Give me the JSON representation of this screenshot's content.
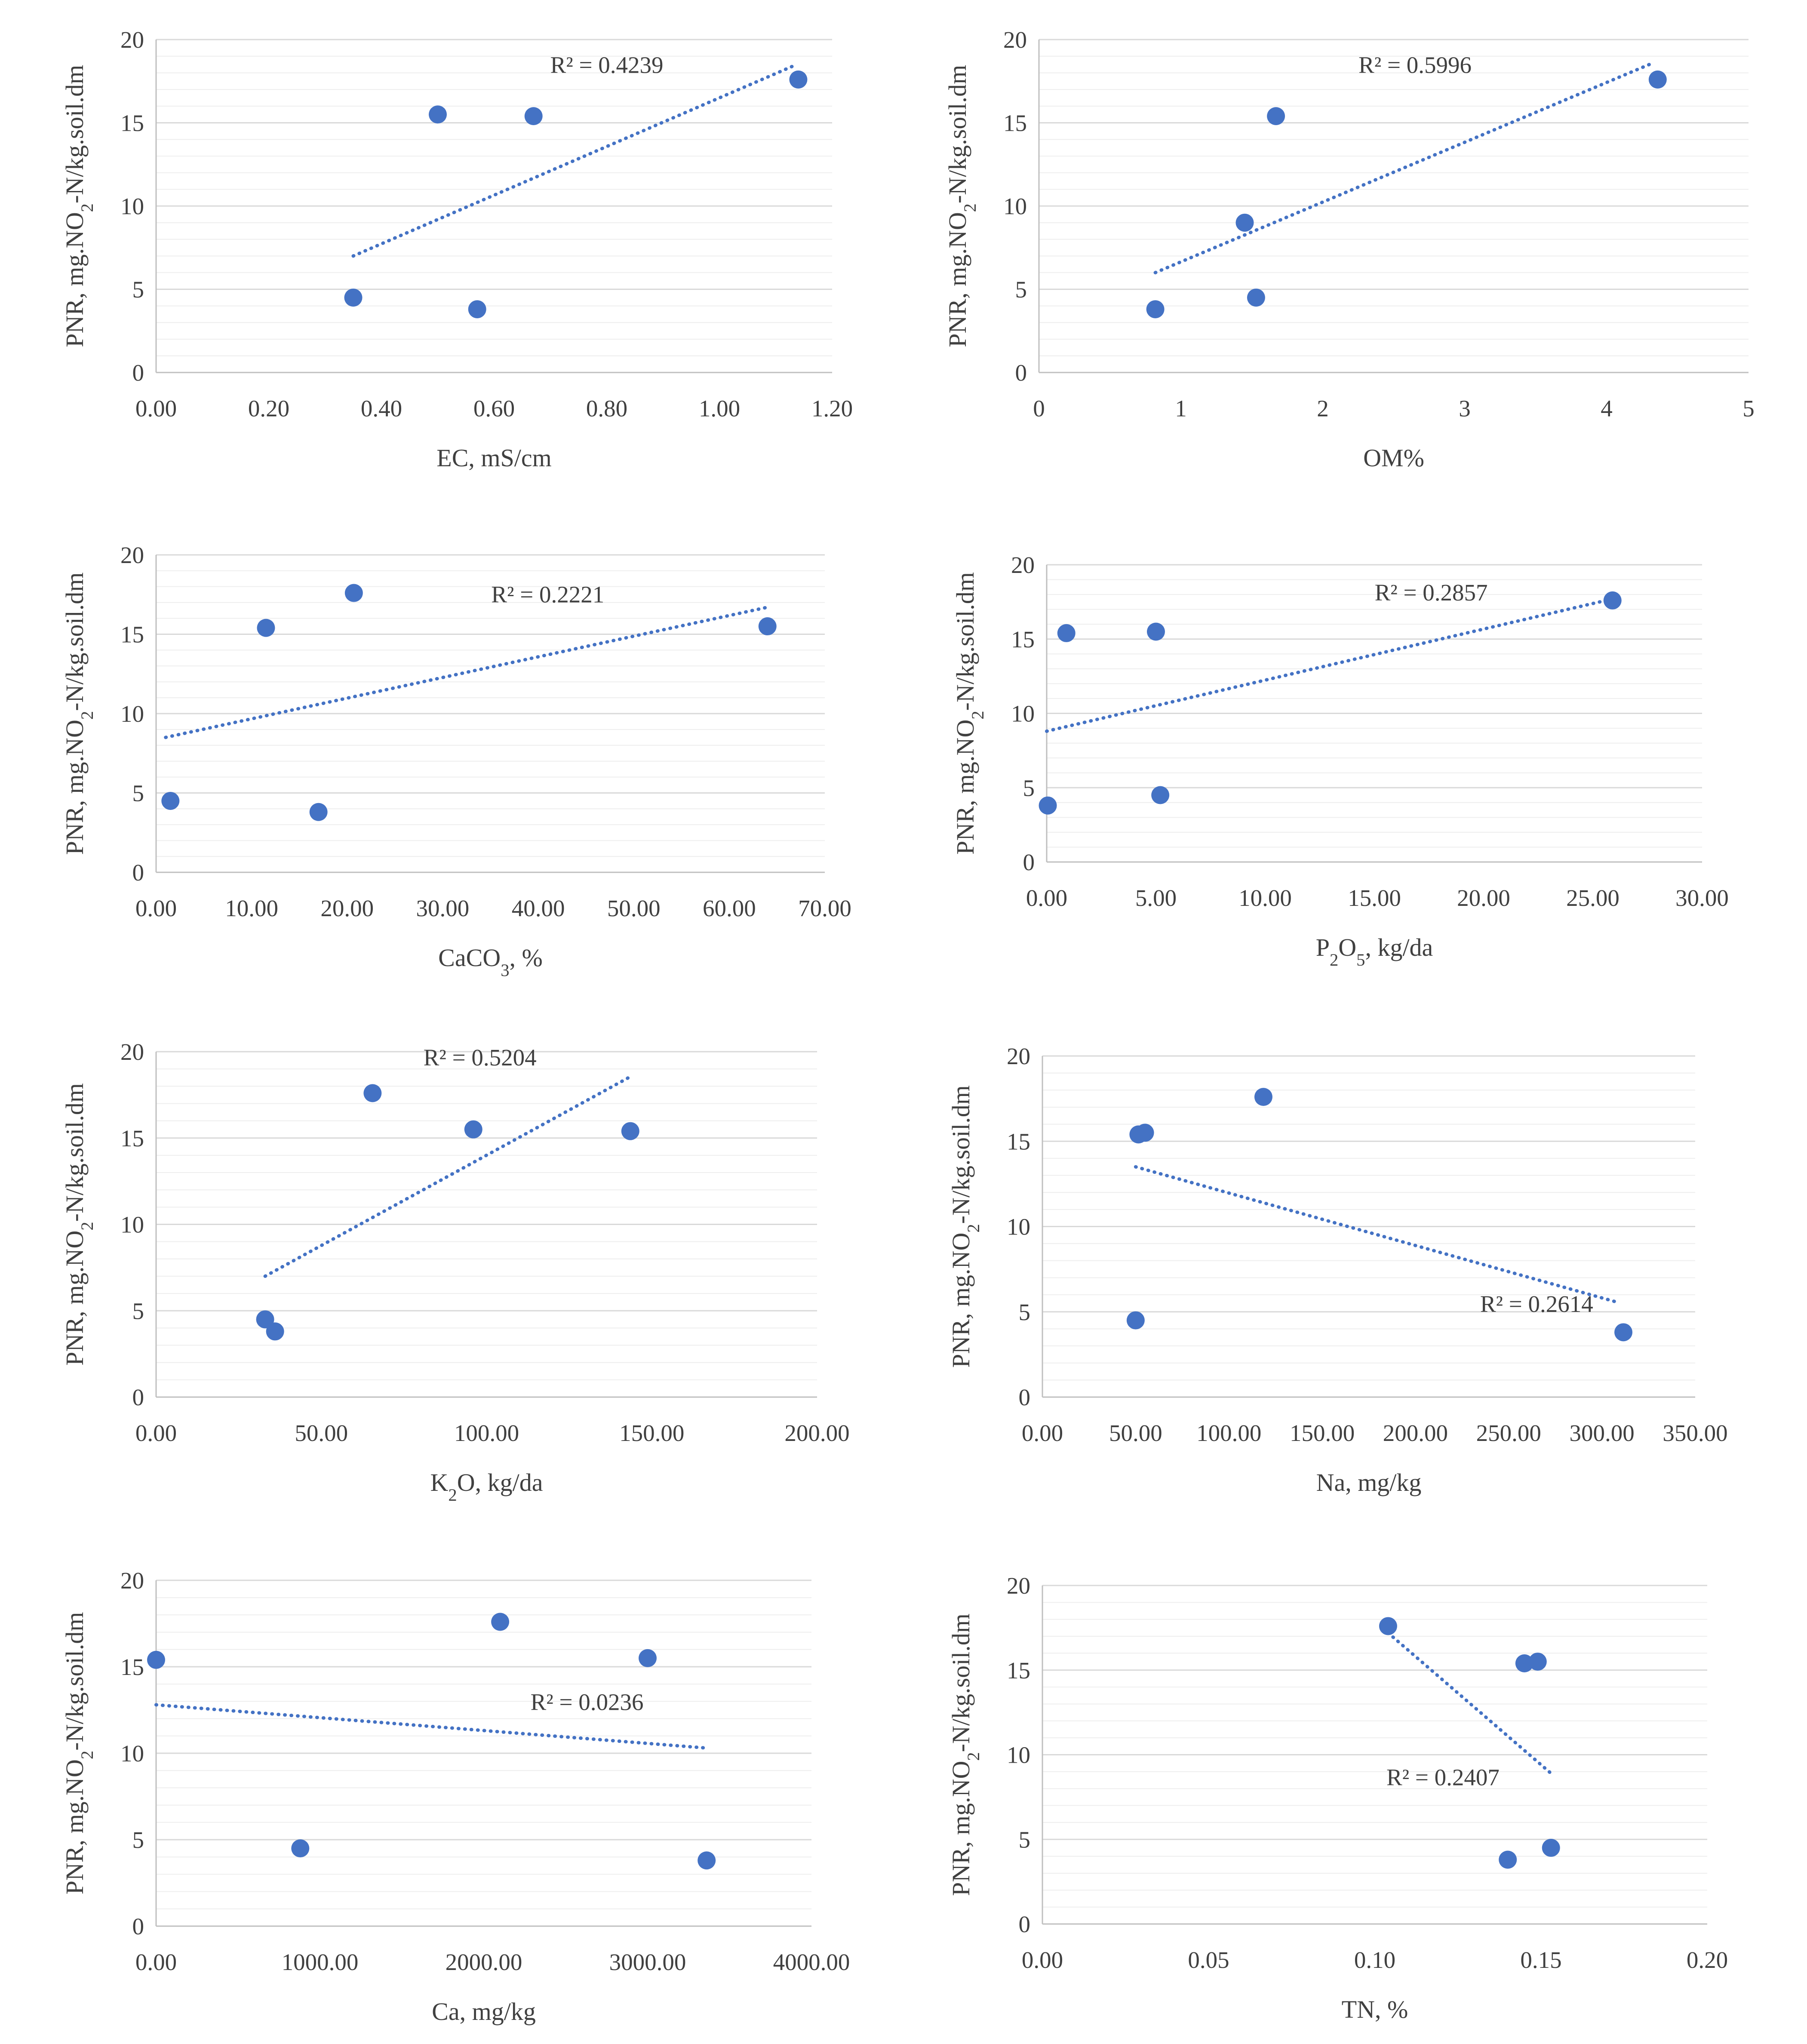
{
  "colors": {
    "point": "#4472C4",
    "trend": "#4472C4",
    "major_grid": "#D9D9D9",
    "minor_grid": "#EEEEEE",
    "axis": "#BFBFBF",
    "text": "#404040"
  },
  "ylabel": "PNR, mg.NO2-N/kg.soil.dm",
  "chart_data": [
    {
      "type": "scatter",
      "xlabel": "EC, mS/cm",
      "ylabel": "PNR, mg.NO2-N/kg.soil.dm",
      "xlim": [
        0,
        1.2
      ],
      "xstep": 0.2,
      "xdecimals": 2,
      "ylim": [
        0,
        20
      ],
      "ystep": 5,
      "x": [
        0.35,
        0.5,
        0.57,
        0.67,
        1.14
      ],
      "y": [
        4.5,
        15.5,
        3.8,
        15.4,
        17.6
      ],
      "trendline": {
        "x": [
          0.35,
          1.13
        ],
        "y": [
          7.0,
          18.4
        ]
      },
      "r2_label": "R² = 0.4239",
      "r2_pos": {
        "x": 0.8,
        "y": 18.0
      }
    },
    {
      "type": "scatter",
      "xlabel": "OM%",
      "ylabel": "PNR, mg.NO2-N/kg.soil.dm",
      "xlim": [
        0,
        5
      ],
      "xstep": 1,
      "xdecimals": 0,
      "ylim": [
        0,
        20
      ],
      "ystep": 5,
      "x": [
        0.82,
        1.45,
        1.53,
        1.67,
        4.36
      ],
      "y": [
        3.8,
        9.0,
        4.5,
        15.4,
        17.6
      ],
      "trendline": {
        "x": [
          0.82,
          4.3
        ],
        "y": [
          6.0,
          18.5
        ]
      },
      "r2_label": "R² = 0.5996",
      "r2_pos": {
        "x": 2.65,
        "y": 18.0
      }
    },
    {
      "type": "scatter",
      "xlabel": "CaCO3, %",
      "ylabel": "PNR, mg.NO2-N/kg.soil.dm",
      "xlim": [
        0,
        70
      ],
      "xstep": 10,
      "xdecimals": 2,
      "ylim": [
        0,
        20
      ],
      "ystep": 5,
      "x": [
        1.5,
        11.5,
        17.0,
        20.7,
        64.0
      ],
      "y": [
        4.5,
        15.4,
        3.8,
        17.6,
        15.5
      ],
      "trendline": {
        "x": [
          1.0,
          64.0
        ],
        "y": [
          8.5,
          16.7
        ]
      },
      "r2_label": "R² = 0.2221",
      "r2_pos": {
        "x": 41.0,
        "y": 17.0
      }
    },
    {
      "type": "scatter",
      "xlabel": "P2O5, kg/da",
      "ylabel": "PNR, mg.NO2-N/kg.soil.dm",
      "xlim": [
        0,
        30
      ],
      "xstep": 5,
      "xdecimals": 2,
      "ylim": [
        0,
        20
      ],
      "ystep": 5,
      "x": [
        0.05,
        0.9,
        5.0,
        5.2,
        25.9
      ],
      "y": [
        3.8,
        15.4,
        15.5,
        4.5,
        17.6
      ],
      "trendline": {
        "x": [
          0.0,
          25.6
        ],
        "y": [
          8.8,
          17.6
        ]
      },
      "r2_label": "R² = 0.2857",
      "r2_pos": {
        "x": 17.6,
        "y": 17.6
      }
    },
    {
      "type": "scatter",
      "xlabel": "K2O, kg/da",
      "ylabel": "PNR, mg.NO2-N/kg.soil.dm",
      "xlim": [
        0,
        200
      ],
      "xstep": 50,
      "xdecimals": 2,
      "ylim": [
        0,
        20
      ],
      "ystep": 5,
      "x": [
        33.0,
        36.0,
        65.5,
        96.0,
        143.5
      ],
      "y": [
        4.5,
        3.8,
        17.6,
        15.5,
        15.4
      ],
      "trendline": {
        "x": [
          33.0,
          143.0
        ],
        "y": [
          7.0,
          18.5
        ]
      },
      "r2_label": "R² = 0.5204",
      "r2_pos": {
        "x": 98.0,
        "y": 19.2
      }
    },
    {
      "type": "scatter",
      "xlabel": "Na, mg/kg",
      "ylabel": "PNR, mg.NO2-N/kg.soil.dm",
      "xlim": [
        0,
        350
      ],
      "xstep": 50,
      "xdecimals": 2,
      "ylim": [
        0,
        20
      ],
      "ystep": 5,
      "x": [
        50.0,
        51.5,
        55.0,
        118.5,
        311.5
      ],
      "y": [
        4.5,
        15.4,
        15.5,
        17.6,
        3.8
      ],
      "trendline": {
        "x": [
          50.0,
          307.0
        ],
        "y": [
          13.5,
          5.6
        ]
      },
      "r2_label": "R² = 0.2614",
      "r2_pos": {
        "x": 265.0,
        "y": 5.0
      }
    },
    {
      "type": "scatter",
      "xlabel": "Ca, mg/kg",
      "ylabel": "PNR, mg.NO2-N/kg.soil.dm",
      "xlim": [
        0,
        4000
      ],
      "xstep": 1000,
      "xdecimals": 2,
      "ylim": [
        0,
        20
      ],
      "ystep": 5,
      "x": [
        0.0,
        880.0,
        2100.0,
        3000.0,
        3360.0
      ],
      "y": [
        15.4,
        4.5,
        17.6,
        15.5,
        3.8
      ],
      "trendline": {
        "x": [
          0.0,
          3360.0
        ],
        "y": [
          12.8,
          10.3
        ]
      },
      "r2_label": "R² = 0.0236",
      "r2_pos": {
        "x": 2630.0,
        "y": 12.5
      }
    },
    {
      "type": "scatter",
      "xlabel": "TN, %",
      "ylabel": "PNR, mg.NO2-N/kg.soil.dm",
      "xlim": [
        0,
        0.2
      ],
      "xstep": 0.05,
      "xdecimals": 2,
      "ylim": [
        0,
        20
      ],
      "ystep": 5,
      "x": [
        0.104,
        0.14,
        0.145,
        0.149,
        0.153
      ],
      "y": [
        17.6,
        3.8,
        15.4,
        15.5,
        4.5
      ],
      "trendline": {
        "x": [
          0.104,
          0.153
        ],
        "y": [
          17.2,
          8.9
        ]
      },
      "r2_label": "R² = 0.2407",
      "r2_pos": {
        "x": 0.1205,
        "y": 8.2
      }
    }
  ]
}
